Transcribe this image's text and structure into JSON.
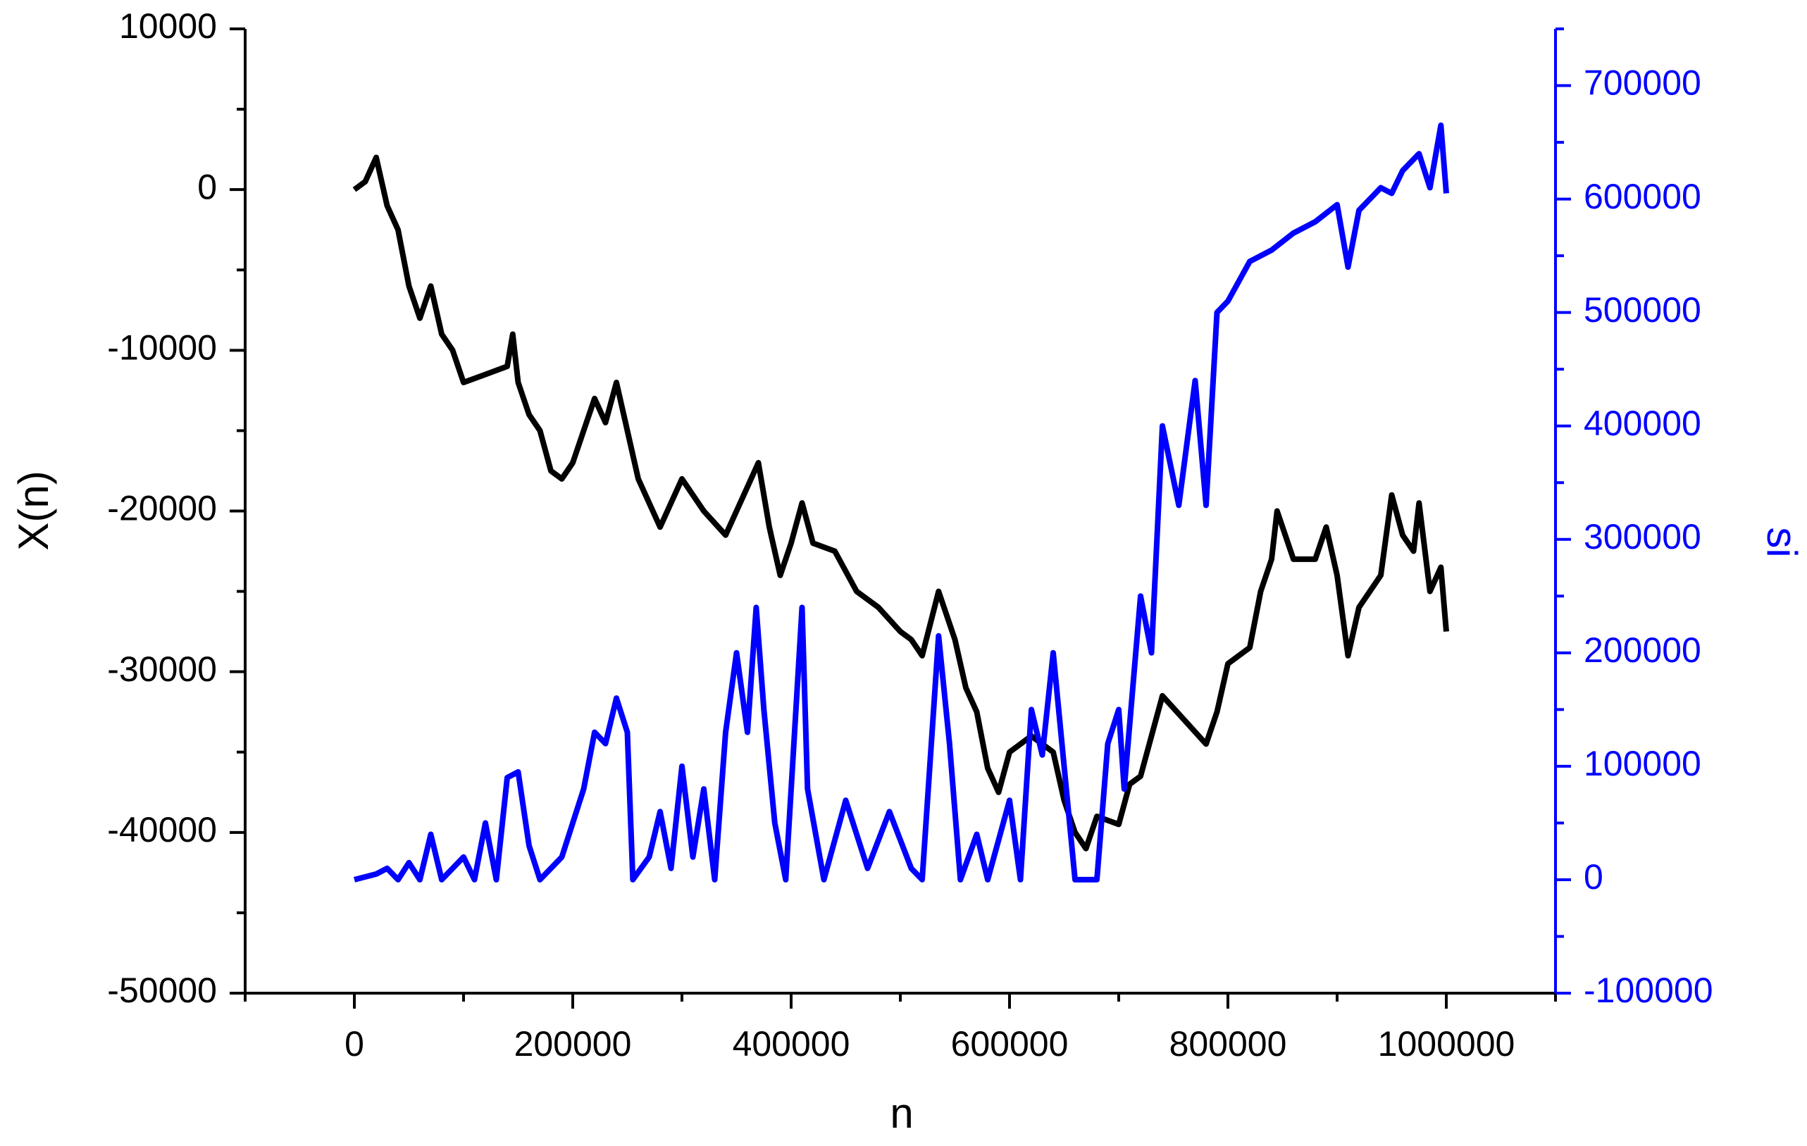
{
  "chart_data": {
    "type": "line",
    "xlabel": "n",
    "ylabel": "X(n)",
    "y2label": "si",
    "xlim": [
      -100000,
      1100000
    ],
    "xticks": [
      0,
      200000,
      400000,
      600000,
      800000,
      1000000
    ],
    "ylim": [
      -50000,
      10000
    ],
    "yticks": [
      -50000,
      -40000,
      -30000,
      -20000,
      -10000,
      0,
      10000
    ],
    "y2lim": [
      -100000,
      750000
    ],
    "y2ticks": [
      -100000,
      0,
      100000,
      200000,
      300000,
      400000,
      500000,
      600000,
      700000
    ],
    "y2color": "#0000ff",
    "series": [
      {
        "name": "X(n)",
        "color": "#000000",
        "x": [
          0,
          10000,
          20000,
          30000,
          40000,
          50000,
          60000,
          70000,
          80000,
          90000,
          100000,
          120000,
          140000,
          145000,
          150000,
          160000,
          170000,
          180000,
          190000,
          200000,
          210000,
          220000,
          230000,
          240000,
          250000,
          260000,
          270000,
          280000,
          300000,
          320000,
          340000,
          350000,
          370000,
          380000,
          390000,
          400000,
          410000,
          420000,
          440000,
          460000,
          480000,
          500000,
          510000,
          520000,
          535000,
          550000,
          560000,
          570000,
          580000,
          590000,
          600000,
          620000,
          640000,
          650000,
          660000,
          670000,
          680000,
          700000,
          710000,
          720000,
          740000,
          760000,
          780000,
          790000,
          800000,
          820000,
          830000,
          840000,
          845000,
          860000,
          880000,
          890000,
          900000,
          910000,
          920000,
          940000,
          950000,
          960000,
          970000,
          975000,
          985000,
          995000,
          1000000
        ],
        "values": [
          0,
          500,
          2000,
          -1000,
          -2500,
          -6000,
          -8000,
          -6000,
          -9000,
          -10000,
          -12000,
          -11500,
          -11000,
          -9000,
          -12000,
          -14000,
          -15000,
          -17500,
          -18000,
          -17000,
          -15000,
          -13000,
          -14500,
          -12000,
          -15000,
          -18000,
          -19500,
          -21000,
          -18000,
          -20000,
          -21500,
          -20000,
          -17000,
          -21000,
          -24000,
          -22000,
          -19500,
          -22000,
          -22500,
          -25000,
          -26000,
          -27500,
          -28000,
          -29000,
          -25000,
          -28000,
          -31000,
          -32500,
          -36000,
          -37500,
          -35000,
          -34000,
          -35000,
          -38000,
          -40000,
          -41000,
          -39000,
          -39500,
          -37000,
          -36500,
          -31500,
          -33000,
          -34500,
          -32500,
          -29500,
          -28500,
          -25000,
          -23000,
          -20000,
          -23000,
          -23000,
          -21000,
          -24000,
          -29000,
          -26000,
          -24000,
          -19000,
          -21500,
          -22500,
          -19500,
          -25000,
          -23500,
          -27500
        ]
      },
      {
        "name": "si",
        "color": "#0000ff",
        "axis": "y2",
        "x": [
          0,
          20000,
          30000,
          40000,
          50000,
          60000,
          70000,
          80000,
          100000,
          110000,
          120000,
          130000,
          140000,
          150000,
          160000,
          170000,
          180000,
          190000,
          200000,
          210000,
          220000,
          230000,
          240000,
          250000,
          255000,
          270000,
          280000,
          290000,
          300000,
          310000,
          320000,
          330000,
          340000,
          350000,
          360000,
          368000,
          375000,
          385000,
          395000,
          410000,
          415000,
          430000,
          450000,
          470000,
          490000,
          510000,
          520000,
          535000,
          545000,
          555000,
          570000,
          580000,
          600000,
          610000,
          620000,
          630000,
          640000,
          650000,
          660000,
          680000,
          690000,
          700000,
          705000,
          720000,
          730000,
          740000,
          755000,
          770000,
          780000,
          790000,
          800000,
          820000,
          840000,
          860000,
          880000,
          900000,
          910000,
          920000,
          940000,
          950000,
          960000,
          975000,
          985000,
          995000,
          1000000
        ],
        "values": [
          0,
          5000,
          10000,
          0,
          15000,
          0,
          40000,
          0,
          20000,
          0,
          50000,
          0,
          90000,
          95000,
          30000,
          0,
          10000,
          20000,
          50000,
          80000,
          130000,
          120000,
          160000,
          130000,
          0,
          20000,
          60000,
          10000,
          100000,
          20000,
          80000,
          0,
          130000,
          200000,
          130000,
          240000,
          150000,
          50000,
          0,
          240000,
          80000,
          0,
          70000,
          10000,
          60000,
          10000,
          0,
          215000,
          120000,
          0,
          40000,
          0,
          70000,
          0,
          150000,
          110000,
          200000,
          100000,
          0,
          0,
          120000,
          150000,
          80000,
          250000,
          200000,
          400000,
          330000,
          440000,
          330000,
          500000,
          510000,
          545000,
          555000,
          570000,
          580000,
          595000,
          540000,
          590000,
          610000,
          605000,
          625000,
          640000,
          610000,
          665000,
          605000
        ]
      }
    ]
  }
}
